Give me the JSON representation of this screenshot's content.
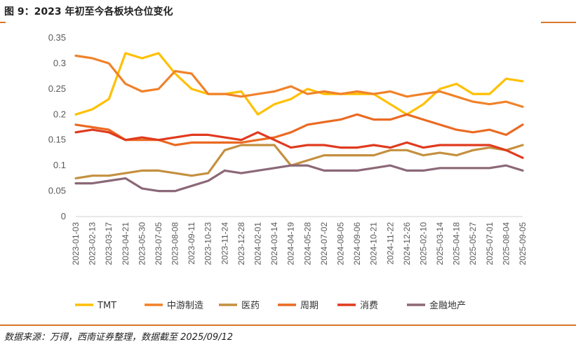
{
  "header": {
    "title": "图 9：2023 年初至今各板块仓位变化"
  },
  "footer": {
    "source": "数据来源：万得，西南证券整理，数据截至 2025/09/12"
  },
  "chart_data": {
    "type": "line",
    "title": "",
    "xlabel": "",
    "ylabel": "",
    "ylim": [
      0,
      0.35
    ],
    "yticks": [
      "0",
      "0.05",
      "0.1",
      "0.15",
      "0.2",
      "0.25",
      "0.3",
      "0.35"
    ],
    "grid": false,
    "legend_position": "bottom",
    "x_ticks": [
      "2023-01-03",
      "2023-02-13",
      "2023-03-17",
      "2023-04-21",
      "2023-05-30",
      "2023-07-05",
      "2023-08-08",
      "2023-09-11",
      "2023-10-23",
      "2023-11-24",
      "2023-12-28",
      "2024-02-01",
      "2024-03-14",
      "2024-04-19",
      "2024-05-28",
      "2024-07-02",
      "2024-08-05",
      "2024-09-06",
      "2024-10-21",
      "2024-11-22",
      "2024-12-26",
      "2025-02-10",
      "2025-03-14",
      "2025-04-18",
      "2025-05-27",
      "2025-07-01",
      "2025-08-04",
      "2025-09-05"
    ],
    "series": [
      {
        "name": "TMT",
        "color": "#ffc000",
        "values": [
          0.2,
          0.21,
          0.23,
          0.32,
          0.31,
          0.32,
          0.28,
          0.25,
          0.24,
          0.24,
          0.245,
          0.2,
          0.22,
          0.23,
          0.25,
          0.24,
          0.24,
          0.24,
          0.24,
          0.22,
          0.2,
          0.22,
          0.25,
          0.26,
          0.24,
          0.24,
          0.27,
          0.265
        ]
      },
      {
        "name": "中游制造",
        "color": "#f0822a",
        "values": [
          0.315,
          0.31,
          0.3,
          0.26,
          0.245,
          0.25,
          0.285,
          0.28,
          0.24,
          0.24,
          0.235,
          0.24,
          0.245,
          0.255,
          0.24,
          0.245,
          0.24,
          0.245,
          0.24,
          0.245,
          0.235,
          0.24,
          0.245,
          0.235,
          0.225,
          0.22,
          0.225,
          0.215
        ]
      },
      {
        "name": "医药",
        "color": "#c49040",
        "values": [
          0.075,
          0.08,
          0.08,
          0.085,
          0.09,
          0.09,
          0.085,
          0.08,
          0.085,
          0.13,
          0.14,
          0.14,
          0.14,
          0.1,
          0.11,
          0.12,
          0.12,
          0.12,
          0.12,
          0.13,
          0.13,
          0.12,
          0.125,
          0.12,
          0.13,
          0.135,
          0.13,
          0.14
        ]
      },
      {
        "name": "周期",
        "color": "#ea6a22",
        "values": [
          0.18,
          0.175,
          0.17,
          0.15,
          0.15,
          0.15,
          0.14,
          0.145,
          0.145,
          0.145,
          0.145,
          0.15,
          0.155,
          0.165,
          0.18,
          0.185,
          0.19,
          0.2,
          0.19,
          0.19,
          0.2,
          0.19,
          0.18,
          0.17,
          0.165,
          0.17,
          0.16,
          0.18
        ]
      },
      {
        "name": "消费",
        "color": "#e03a1e",
        "values": [
          0.165,
          0.17,
          0.165,
          0.15,
          0.155,
          0.15,
          0.155,
          0.16,
          0.16,
          0.155,
          0.15,
          0.165,
          0.15,
          0.135,
          0.14,
          0.14,
          0.135,
          0.135,
          0.14,
          0.135,
          0.145,
          0.135,
          0.14,
          0.14,
          0.14,
          0.14,
          0.13,
          0.115
        ]
      },
      {
        "name": "金融地产",
        "color": "#8b6877",
        "values": [
          0.065,
          0.065,
          0.07,
          0.075,
          0.055,
          0.05,
          0.05,
          0.06,
          0.07,
          0.09,
          0.085,
          0.09,
          0.095,
          0.1,
          0.1,
          0.09,
          0.09,
          0.09,
          0.095,
          0.1,
          0.09,
          0.09,
          0.095,
          0.095,
          0.095,
          0.095,
          0.1,
          0.09
        ]
      }
    ]
  }
}
